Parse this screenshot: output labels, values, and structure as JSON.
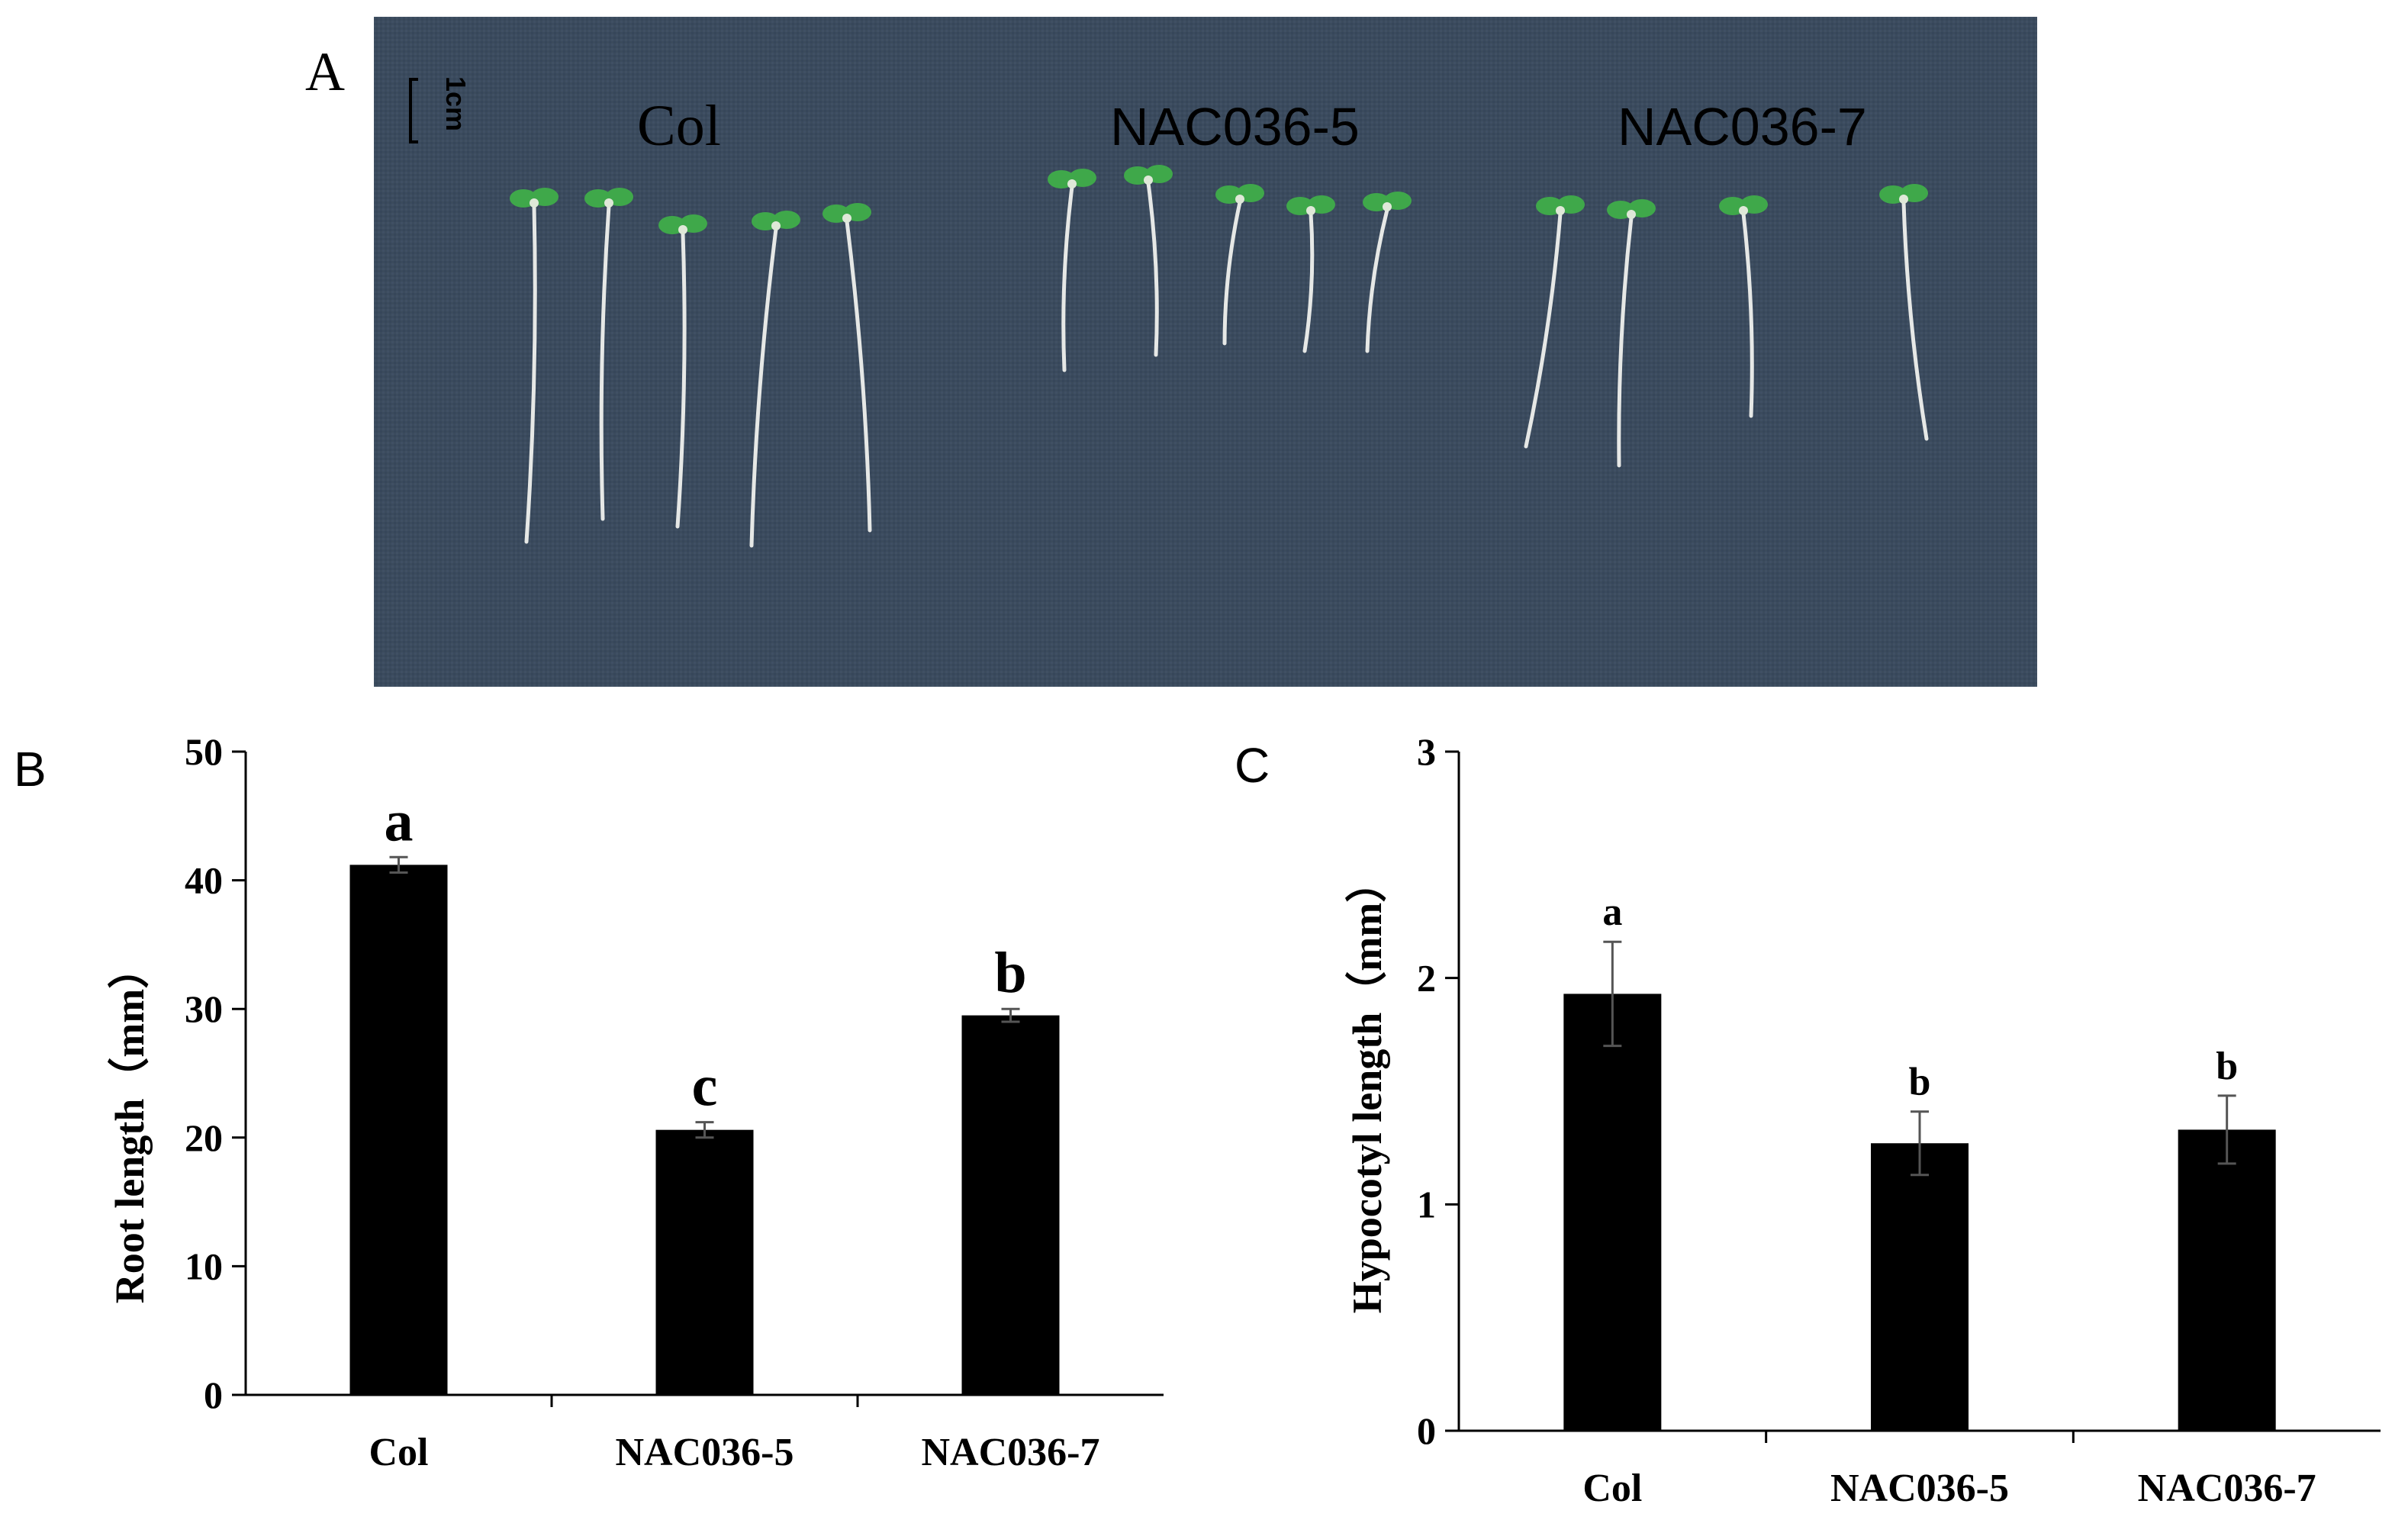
{
  "panels": {
    "a": {
      "letter": "A",
      "scale_bar_label": "1cm",
      "group_labels": [
        "Col",
        "NAC036-5",
        "NAC036-7"
      ],
      "background_color": "#3a4a5c",
      "leaf_color": "#3fa84a",
      "root_color": "#e6e8e6"
    },
    "b": {
      "letter": "B"
    },
    "c": {
      "letter": "C"
    }
  },
  "chart_data": [
    {
      "type": "bar",
      "panel": "B",
      "categories": [
        "Col",
        "NAC036-5",
        "NAC036-7"
      ],
      "values": [
        41.2,
        20.6,
        29.5
      ],
      "errors": [
        0.6,
        0.6,
        0.5
      ],
      "significance": [
        "a",
        "c",
        "b"
      ],
      "ylabel": "Root length（mm）",
      "ylim": [
        0,
        50
      ],
      "yticks": [
        0,
        10,
        20,
        30,
        40,
        50
      ],
      "bar_color": "#000000",
      "grid": false
    },
    {
      "type": "bar",
      "panel": "C",
      "categories": [
        "Col",
        "NAC036-5",
        "NAC036-7"
      ],
      "values": [
        1.93,
        1.27,
        1.33
      ],
      "errors": [
        0.23,
        0.14,
        0.15
      ],
      "significance": [
        "a",
        "b",
        "b"
      ],
      "ylabel": "Hypocotyl length（mm）",
      "ylim": [
        0,
        3
      ],
      "yticks": [
        0,
        1,
        2,
        3
      ],
      "bar_color": "#000000",
      "grid": false
    }
  ]
}
